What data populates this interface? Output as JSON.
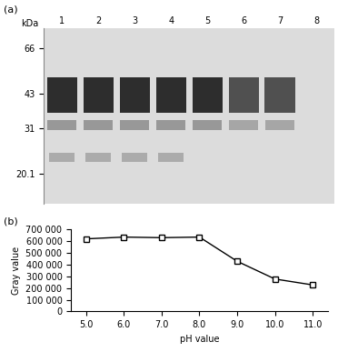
{
  "chart_data": [
    {
      "type": "gel",
      "title": "(a)",
      "ylabel": "kDa",
      "categories": [
        "1",
        "2",
        "3",
        "4",
        "5",
        "6",
        "7",
        "8"
      ],
      "log": "y",
      "ylim": [
        15,
        80
      ],
      "yticks": [
        66,
        43,
        31,
        20.1
      ],
      "color": "#1a1a1a"
    },
    {
      "type": "line",
      "title": "(b)",
      "xlabel": "pH value",
      "ylabel": "Gray value",
      "x": [
        5.0,
        6.0,
        7.0,
        8.0,
        9.0,
        10.0,
        11.0
      ],
      "values": [
        615000,
        630000,
        625000,
        630000,
        425000,
        275000,
        225000
      ],
      "xlim": [
        4.6,
        11.4
      ],
      "xticks": [
        {
          "value": 5,
          "label": "5.0"
        },
        {
          "value": 6,
          "label": "6.0"
        },
        {
          "value": 7,
          "label": "7.0"
        },
        {
          "value": 8,
          "label": "8.0"
        },
        {
          "value": 9,
          "label": "9.0"
        },
        {
          "value": 10,
          "label": "10.0"
        },
        {
          "value": 11,
          "label": "11.0"
        }
      ],
      "ylim": [
        0,
        700000
      ],
      "yticks": [
        0,
        {
          "value": 100000,
          "label": "100 000"
        },
        {
          "value": 200000,
          "label": "200 000"
        },
        {
          "value": 300000,
          "label": "300 000"
        },
        {
          "value": 400000,
          "label": "400 000"
        },
        {
          "value": 500000,
          "label": "500 000"
        },
        {
          "value": 600000,
          "label": "600 000"
        },
        {
          "value": 700000,
          "label": "700 000"
        }
      ],
      "color": "#000000",
      "marker": "square"
    }
  ]
}
